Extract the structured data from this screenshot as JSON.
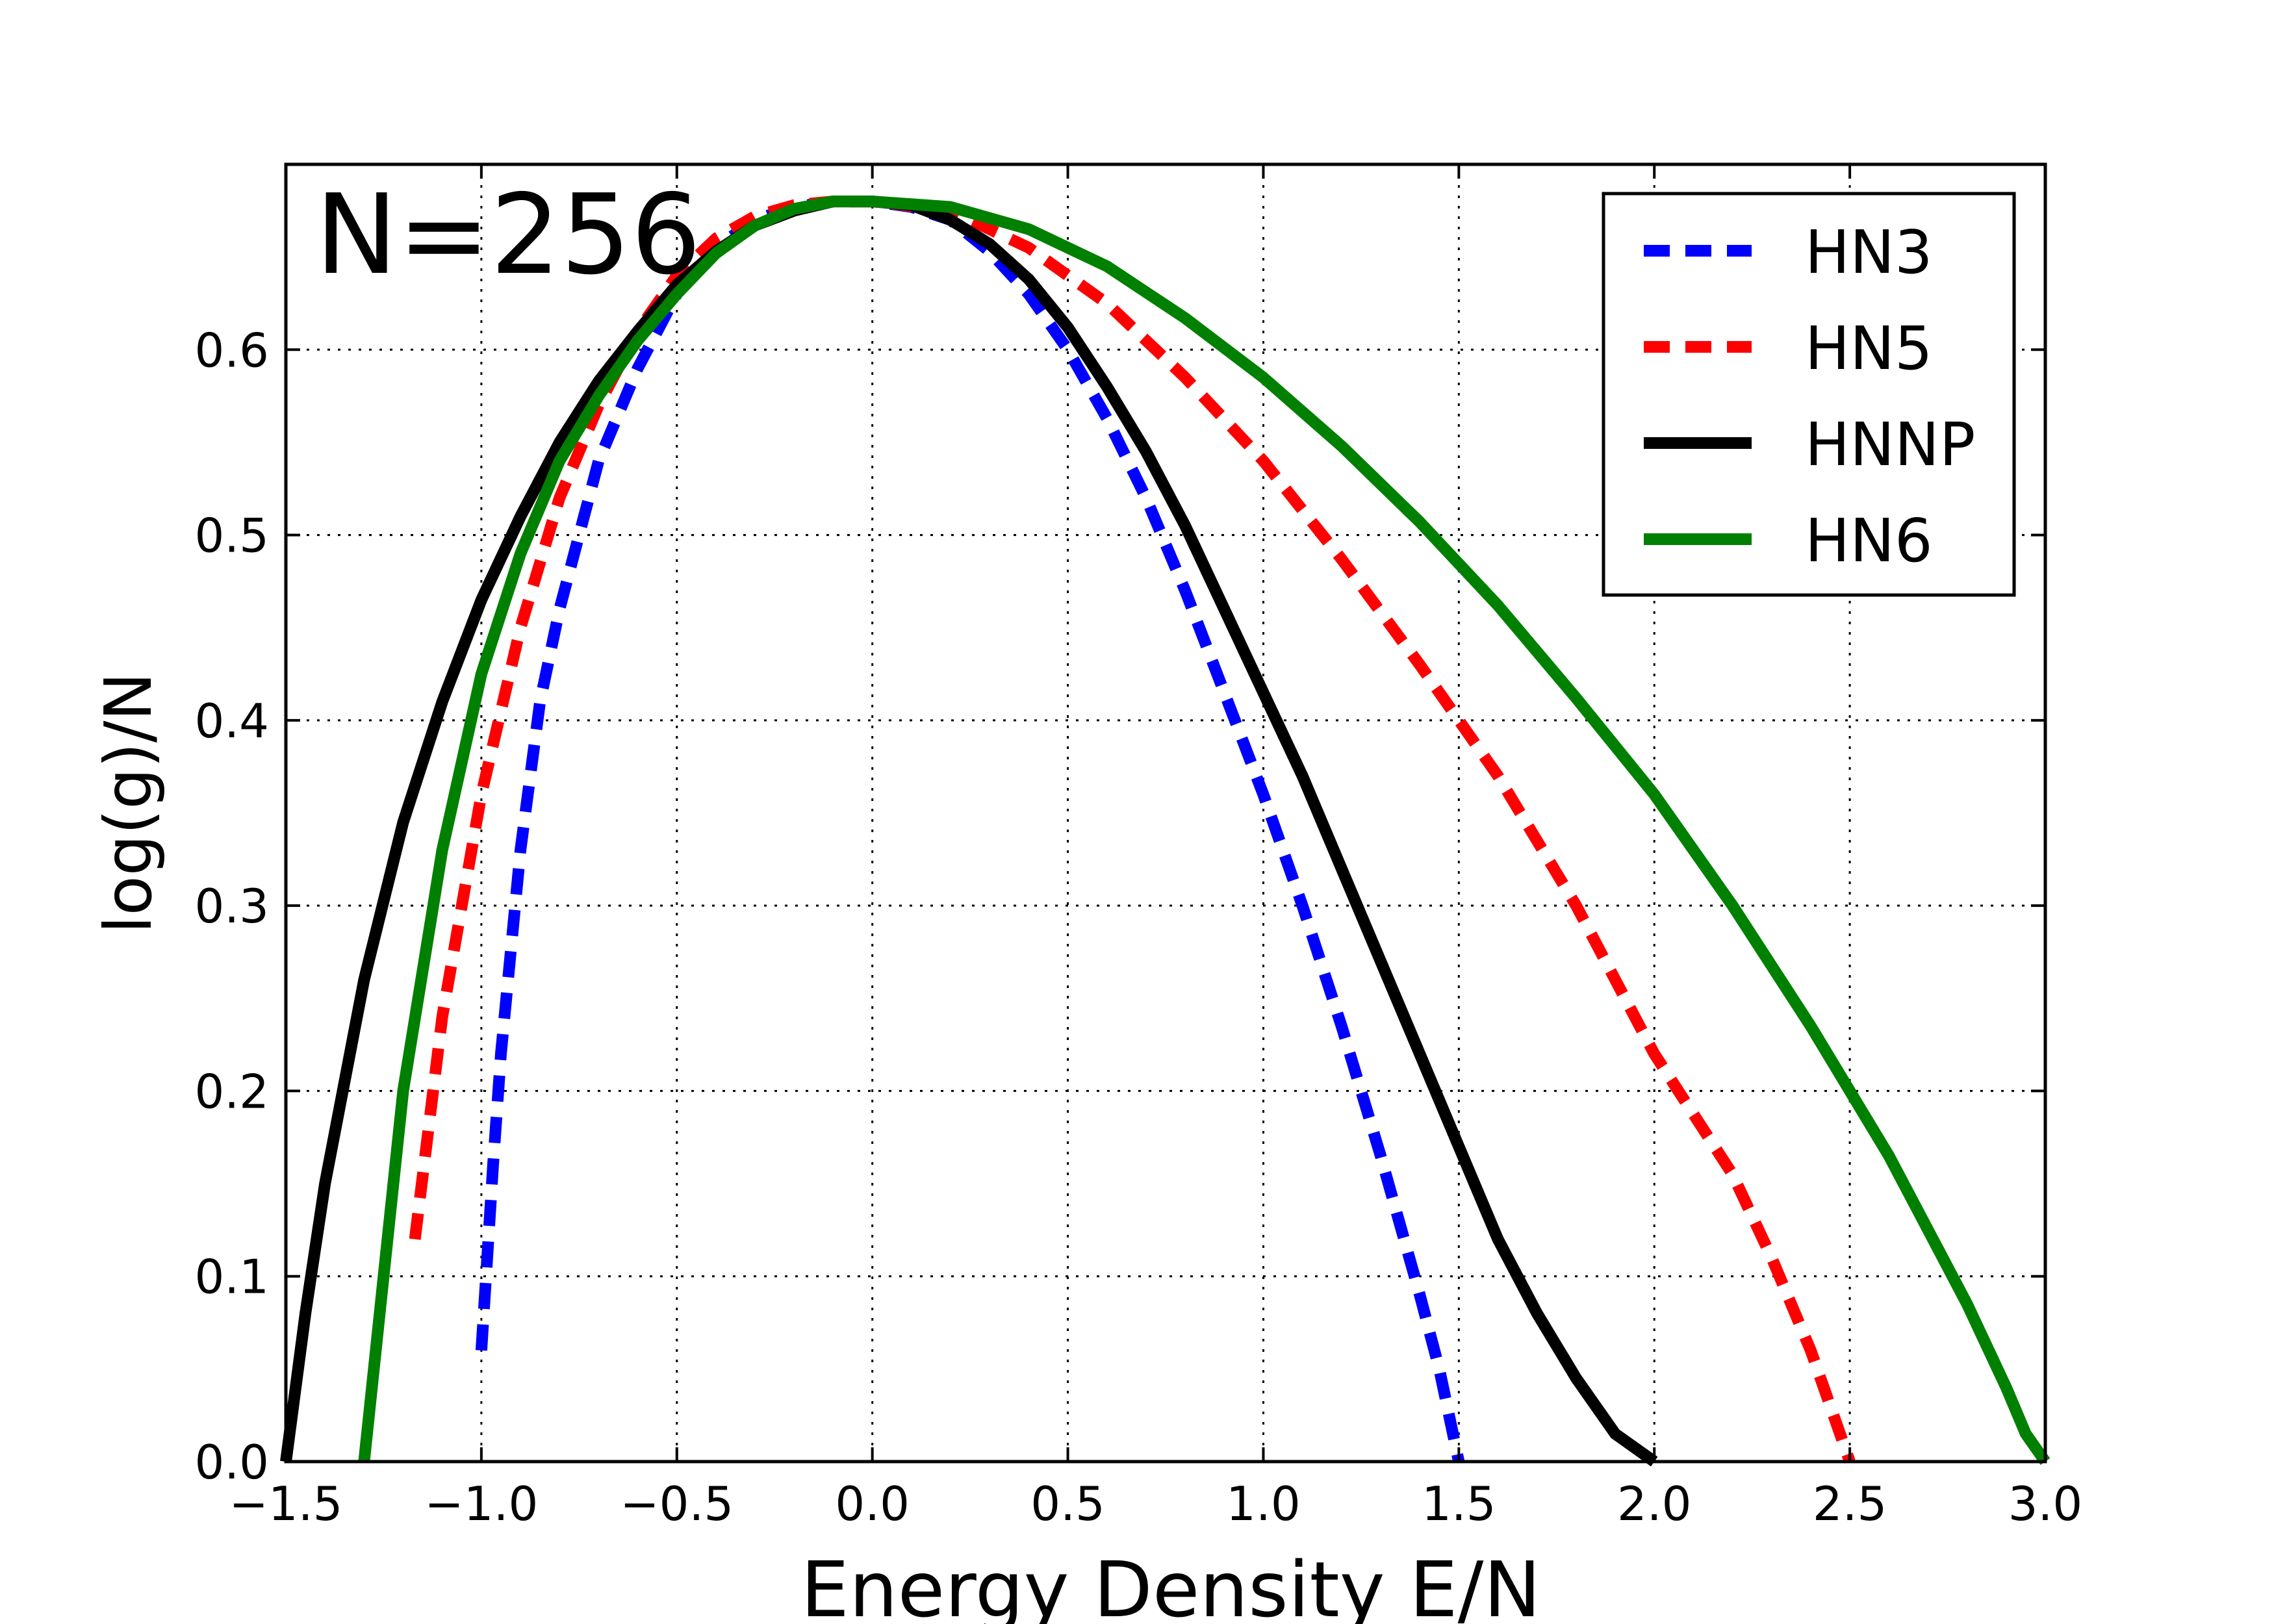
{
  "chart_data": {
    "type": "line",
    "annotation": "N=256",
    "xlabel": "Energy Density E/N",
    "ylabel": "log(g)/N",
    "xlim": [
      -1.5,
      3.0
    ],
    "ylim": [
      0.0,
      0.7
    ],
    "xticks": [
      -1.5,
      -1.0,
      -0.5,
      0.0,
      0.5,
      1.0,
      1.5,
      2.0,
      2.5,
      3.0
    ],
    "xtick_labels": [
      "−1.5",
      "−1.0",
      "−0.5",
      "0.0",
      "0.5",
      "1.0",
      "1.5",
      "2.0",
      "2.5",
      "3.0"
    ],
    "yticks": [
      0.0,
      0.1,
      0.2,
      0.3,
      0.4,
      0.5,
      0.6
    ],
    "ytick_labels": [
      "0.0",
      "0.1",
      "0.2",
      "0.3",
      "0.4",
      "0.5",
      "0.6"
    ],
    "grid": true,
    "legend_position": "top-right",
    "series": [
      {
        "name": "HN3",
        "color": "#0000ff",
        "linestyle": "dashed",
        "points": [
          [
            -1.0,
            0.06
          ],
          [
            -0.97,
            0.16
          ],
          [
            -0.95,
            0.22
          ],
          [
            -0.9,
            0.33
          ],
          [
            -0.85,
            0.41
          ],
          [
            -0.8,
            0.46
          ],
          [
            -0.7,
            0.54
          ],
          [
            -0.6,
            0.59
          ],
          [
            -0.5,
            0.63
          ],
          [
            -0.4,
            0.655
          ],
          [
            -0.3,
            0.67
          ],
          [
            -0.2,
            0.677
          ],
          [
            -0.1,
            0.68
          ],
          [
            0.0,
            0.68
          ],
          [
            0.1,
            0.677
          ],
          [
            0.2,
            0.67
          ],
          [
            0.3,
            0.653
          ],
          [
            0.4,
            0.63
          ],
          [
            0.5,
            0.6
          ],
          [
            0.6,
            0.563
          ],
          [
            0.7,
            0.52
          ],
          [
            0.8,
            0.47
          ],
          [
            0.9,
            0.415
          ],
          [
            1.0,
            0.36
          ],
          [
            1.1,
            0.3
          ],
          [
            1.2,
            0.235
          ],
          [
            1.3,
            0.165
          ],
          [
            1.4,
            0.09
          ],
          [
            1.45,
            0.05
          ],
          [
            1.5,
            0.0
          ]
        ]
      },
      {
        "name": "HN5",
        "color": "#ff0000",
        "linestyle": "dashed",
        "points": [
          [
            -1.17,
            0.12
          ],
          [
            -1.1,
            0.24
          ],
          [
            -1.0,
            0.36
          ],
          [
            -0.9,
            0.45
          ],
          [
            -0.8,
            0.52
          ],
          [
            -0.7,
            0.57
          ],
          [
            -0.6,
            0.61
          ],
          [
            -0.5,
            0.64
          ],
          [
            -0.4,
            0.66
          ],
          [
            -0.3,
            0.672
          ],
          [
            -0.2,
            0.678
          ],
          [
            -0.1,
            0.68
          ],
          [
            0.0,
            0.68
          ],
          [
            0.2,
            0.675
          ],
          [
            0.4,
            0.655
          ],
          [
            0.6,
            0.625
          ],
          [
            0.8,
            0.585
          ],
          [
            1.0,
            0.54
          ],
          [
            1.2,
            0.487
          ],
          [
            1.4,
            0.43
          ],
          [
            1.6,
            0.37
          ],
          [
            1.8,
            0.3
          ],
          [
            2.0,
            0.22
          ],
          [
            2.2,
            0.155
          ],
          [
            2.3,
            0.11
          ],
          [
            2.4,
            0.06
          ],
          [
            2.45,
            0.03
          ],
          [
            2.5,
            0.0
          ]
        ]
      },
      {
        "name": "HNNP",
        "color": "#000000",
        "linestyle": "solid",
        "points": [
          [
            -1.5,
            0.0
          ],
          [
            -1.45,
            0.08
          ],
          [
            -1.4,
            0.15
          ],
          [
            -1.3,
            0.26
          ],
          [
            -1.2,
            0.345
          ],
          [
            -1.1,
            0.41
          ],
          [
            -1.0,
            0.465
          ],
          [
            -0.9,
            0.51
          ],
          [
            -0.8,
            0.55
          ],
          [
            -0.7,
            0.583
          ],
          [
            -0.6,
            0.61
          ],
          [
            -0.5,
            0.635
          ],
          [
            -0.4,
            0.653
          ],
          [
            -0.3,
            0.667
          ],
          [
            -0.2,
            0.675
          ],
          [
            -0.1,
            0.68
          ],
          [
            0.0,
            0.68
          ],
          [
            0.1,
            0.678
          ],
          [
            0.2,
            0.67
          ],
          [
            0.3,
            0.657
          ],
          [
            0.4,
            0.638
          ],
          [
            0.5,
            0.612
          ],
          [
            0.6,
            0.58
          ],
          [
            0.7,
            0.545
          ],
          [
            0.8,
            0.505
          ],
          [
            0.9,
            0.46
          ],
          [
            1.0,
            0.415
          ],
          [
            1.1,
            0.37
          ],
          [
            1.2,
            0.32
          ],
          [
            1.3,
            0.27
          ],
          [
            1.4,
            0.22
          ],
          [
            1.5,
            0.17
          ],
          [
            1.6,
            0.12
          ],
          [
            1.7,
            0.08
          ],
          [
            1.8,
            0.045
          ],
          [
            1.9,
            0.015
          ],
          [
            2.0,
            0.0
          ]
        ]
      },
      {
        "name": "HN6",
        "color": "#008000",
        "linestyle": "solid",
        "points": [
          [
            -1.3,
            0.0
          ],
          [
            -1.25,
            0.1
          ],
          [
            -1.2,
            0.2
          ],
          [
            -1.1,
            0.33
          ],
          [
            -1.0,
            0.425
          ],
          [
            -0.9,
            0.49
          ],
          [
            -0.8,
            0.54
          ],
          [
            -0.7,
            0.575
          ],
          [
            -0.6,
            0.605
          ],
          [
            -0.5,
            0.63
          ],
          [
            -0.4,
            0.652
          ],
          [
            -0.3,
            0.667
          ],
          [
            -0.2,
            0.676
          ],
          [
            -0.1,
            0.68
          ],
          [
            0.0,
            0.68
          ],
          [
            0.2,
            0.677
          ],
          [
            0.4,
            0.665
          ],
          [
            0.6,
            0.645
          ],
          [
            0.8,
            0.617
          ],
          [
            1.0,
            0.585
          ],
          [
            1.2,
            0.548
          ],
          [
            1.4,
            0.507
          ],
          [
            1.6,
            0.462
          ],
          [
            1.8,
            0.412
          ],
          [
            2.0,
            0.36
          ],
          [
            2.2,
            0.3
          ],
          [
            2.4,
            0.235
          ],
          [
            2.6,
            0.165
          ],
          [
            2.7,
            0.125
          ],
          [
            2.8,
            0.085
          ],
          [
            2.9,
            0.04
          ],
          [
            2.95,
            0.015
          ],
          [
            3.0,
            0.0
          ]
        ]
      }
    ]
  }
}
